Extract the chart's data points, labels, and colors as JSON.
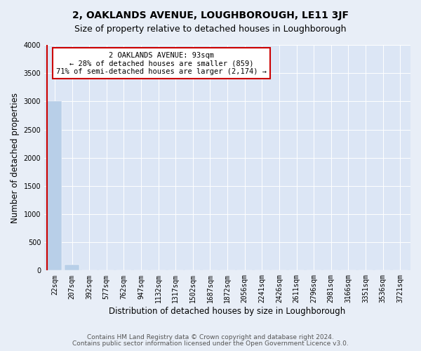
{
  "title": "2, OAKLANDS AVENUE, LOUGHBOROUGH, LE11 3JF",
  "subtitle": "Size of property relative to detached houses in Loughborough",
  "xlabel": "Distribution of detached houses by size in Loughborough",
  "ylabel": "Number of detached properties",
  "footnote1": "Contains HM Land Registry data © Crown copyright and database right 2024.",
  "footnote2": "Contains public sector information licensed under the Open Government Licence v3.0.",
  "bar_labels": [
    "22sqm",
    "207sqm",
    "392sqm",
    "577sqm",
    "762sqm",
    "947sqm",
    "1132sqm",
    "1317sqm",
    "1502sqm",
    "1687sqm",
    "1872sqm",
    "2056sqm",
    "2241sqm",
    "2426sqm",
    "2611sqm",
    "2796sqm",
    "2981sqm",
    "3166sqm",
    "3351sqm",
    "3536sqm",
    "3721sqm"
  ],
  "bar_values": [
    3000,
    100,
    5,
    2,
    1,
    1,
    1,
    1,
    0,
    0,
    0,
    0,
    0,
    0,
    0,
    0,
    0,
    0,
    0,
    0,
    0
  ],
  "bar_color": "#b8cfe8",
  "annotation_line1": "2 OAKLANDS AVENUE: 93sqm",
  "annotation_line2": "← 28% of detached houses are smaller (859)",
  "annotation_line3": "71% of semi-detached houses are larger (2,174) →",
  "annotation_box_color": "white",
  "annotation_box_edge_color": "#cc0000",
  "marker_line_color": "#cc0000",
  "ylim": [
    0,
    4000
  ],
  "yticks": [
    0,
    500,
    1000,
    1500,
    2000,
    2500,
    3000,
    3500,
    4000
  ],
  "bg_color": "#e8eef7",
  "plot_bg_color": "#dce6f5",
  "title_fontsize": 10,
  "subtitle_fontsize": 9,
  "xlabel_fontsize": 8.5,
  "ylabel_fontsize": 8.5,
  "tick_fontsize": 7,
  "annotation_fontsize": 7.5,
  "footnote_fontsize": 6.5
}
